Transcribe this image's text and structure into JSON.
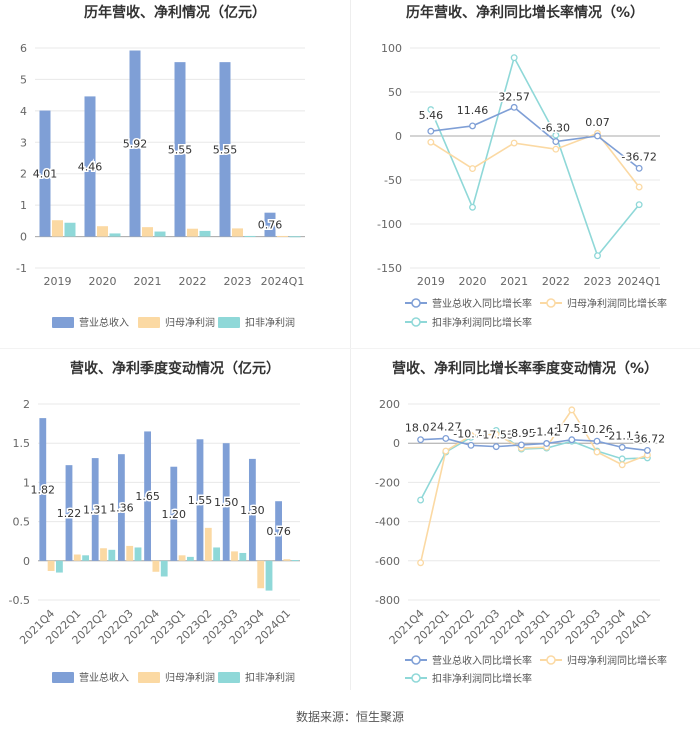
{
  "footer": "数据来源：恒生聚源",
  "colors": {
    "revenue": "#7f9fd6",
    "netprofit": "#fbd9a3",
    "deducted": "#8fd8d8",
    "axis": "#999999",
    "grid": "#e8e8e8"
  },
  "chart_data": [
    {
      "id": "annual-bar",
      "type": "bar",
      "title": "历年营收、净利情况（亿元）",
      "categories": [
        "2019",
        "2020",
        "2021",
        "2022",
        "2023",
        "2024Q1"
      ],
      "ylim": [
        -1,
        6
      ],
      "yticks": [
        -1,
        0,
        1,
        2,
        3,
        4,
        5,
        6
      ],
      "series": [
        {
          "name": "营业总收入",
          "values": [
            4.01,
            4.46,
            5.92,
            5.55,
            5.55,
            0.76
          ],
          "labels": [
            "4.01",
            "4.46",
            "5.92",
            "5.55",
            "5.55",
            "0.76"
          ]
        },
        {
          "name": "归母净利润",
          "values": [
            0.52,
            0.33,
            0.3,
            0.25,
            0.26,
            0.02
          ]
        },
        {
          "name": "扣非净利润",
          "values": [
            0.44,
            0.1,
            0.16,
            0.18,
            0.02,
            0.01
          ]
        }
      ],
      "legend": "bottom"
    },
    {
      "id": "annual-line",
      "type": "line",
      "title": "历年营收、净利同比增长率情况（%）",
      "categories": [
        "2019",
        "2020",
        "2021",
        "2022",
        "2023",
        "2024Q1"
      ],
      "ylim": [
        -150,
        100
      ],
      "yticks": [
        -150,
        -100,
        -50,
        0,
        50,
        100
      ],
      "series": [
        {
          "name": "营业总收入同比增长率",
          "values": [
            5.46,
            11.46,
            32.57,
            -6.3,
            0.07,
            -36.72
          ],
          "labels": [
            "5.46",
            "11.46",
            "32.57",
            "-6.30",
            "0.07",
            "-36.72"
          ]
        },
        {
          "name": "归母净利润同比增长率",
          "values": [
            -7,
            -37,
            -8,
            -15,
            3,
            -58
          ]
        },
        {
          "name": "扣非净利润同比增长率",
          "values": [
            30,
            -81,
            89,
            1,
            -136,
            -78
          ]
        }
      ],
      "legend": "bottom"
    },
    {
      "id": "quarter-bar",
      "type": "bar",
      "title": "营收、净利季度变动情况（亿元）",
      "categories": [
        "2021Q4",
        "2022Q1",
        "2022Q2",
        "2022Q3",
        "2022Q4",
        "2023Q1",
        "2023Q2",
        "2023Q3",
        "2023Q4",
        "2024Q1"
      ],
      "ylim": [
        -0.5,
        2
      ],
      "yticks": [
        -0.5,
        0,
        0.5,
        1,
        1.5,
        2
      ],
      "series": [
        {
          "name": "营业总收入",
          "values": [
            1.82,
            1.22,
            1.31,
            1.36,
            1.65,
            1.2,
            1.55,
            1.5,
            1.3,
            0.76
          ],
          "labels": [
            "1.82",
            "1.22",
            "1.31",
            "1.36",
            "1.65",
            "1.20",
            "1.55",
            "1.50",
            "1.30",
            "0.76"
          ]
        },
        {
          "name": "归母净利润",
          "values": [
            -0.13,
            0.08,
            0.16,
            0.19,
            -0.14,
            0.07,
            0.42,
            0.12,
            -0.35,
            0.02
          ]
        },
        {
          "name": "扣非净利润",
          "values": [
            -0.15,
            0.07,
            0.14,
            0.17,
            -0.2,
            0.05,
            0.17,
            0.1,
            -0.38,
            0.01
          ]
        }
      ],
      "legend": "bottom"
    },
    {
      "id": "quarter-line",
      "type": "line",
      "title": "营收、净利同比增长率季度变动情况（%）",
      "categories": [
        "2021Q4",
        "2022Q1",
        "2022Q2",
        "2022Q3",
        "2022Q4",
        "2023Q1",
        "2023Q2",
        "2023Q3",
        "2023Q4",
        "2024Q1"
      ],
      "ylim": [
        -800,
        200
      ],
      "yticks": [
        -800,
        -600,
        -400,
        -200,
        0,
        200
      ],
      "series": [
        {
          "name": "营业总收入同比增长率",
          "values": [
            18.01,
            24.27,
            -10.72,
            -17.53,
            -8.95,
            -1.42,
            17.59,
            10.26,
            -21.14,
            -36.72
          ],
          "labels": [
            "18.01",
            "24.27",
            "-10.72",
            "-17.53",
            "-8.95",
            "-1.42",
            "17.59",
            "10.26",
            "-21.14",
            "-36.72"
          ]
        },
        {
          "name": "归母净利润同比增长率",
          "values": [
            -610,
            -40,
            40,
            45,
            -25,
            -20,
            170,
            -45,
            -110,
            -60
          ]
        },
        {
          "name": "扣非净利润同比增长率",
          "values": [
            -290,
            -45,
            30,
            65,
            -30,
            -25,
            10,
            -40,
            -80,
            -75
          ]
        }
      ],
      "legend": "bottom"
    }
  ]
}
